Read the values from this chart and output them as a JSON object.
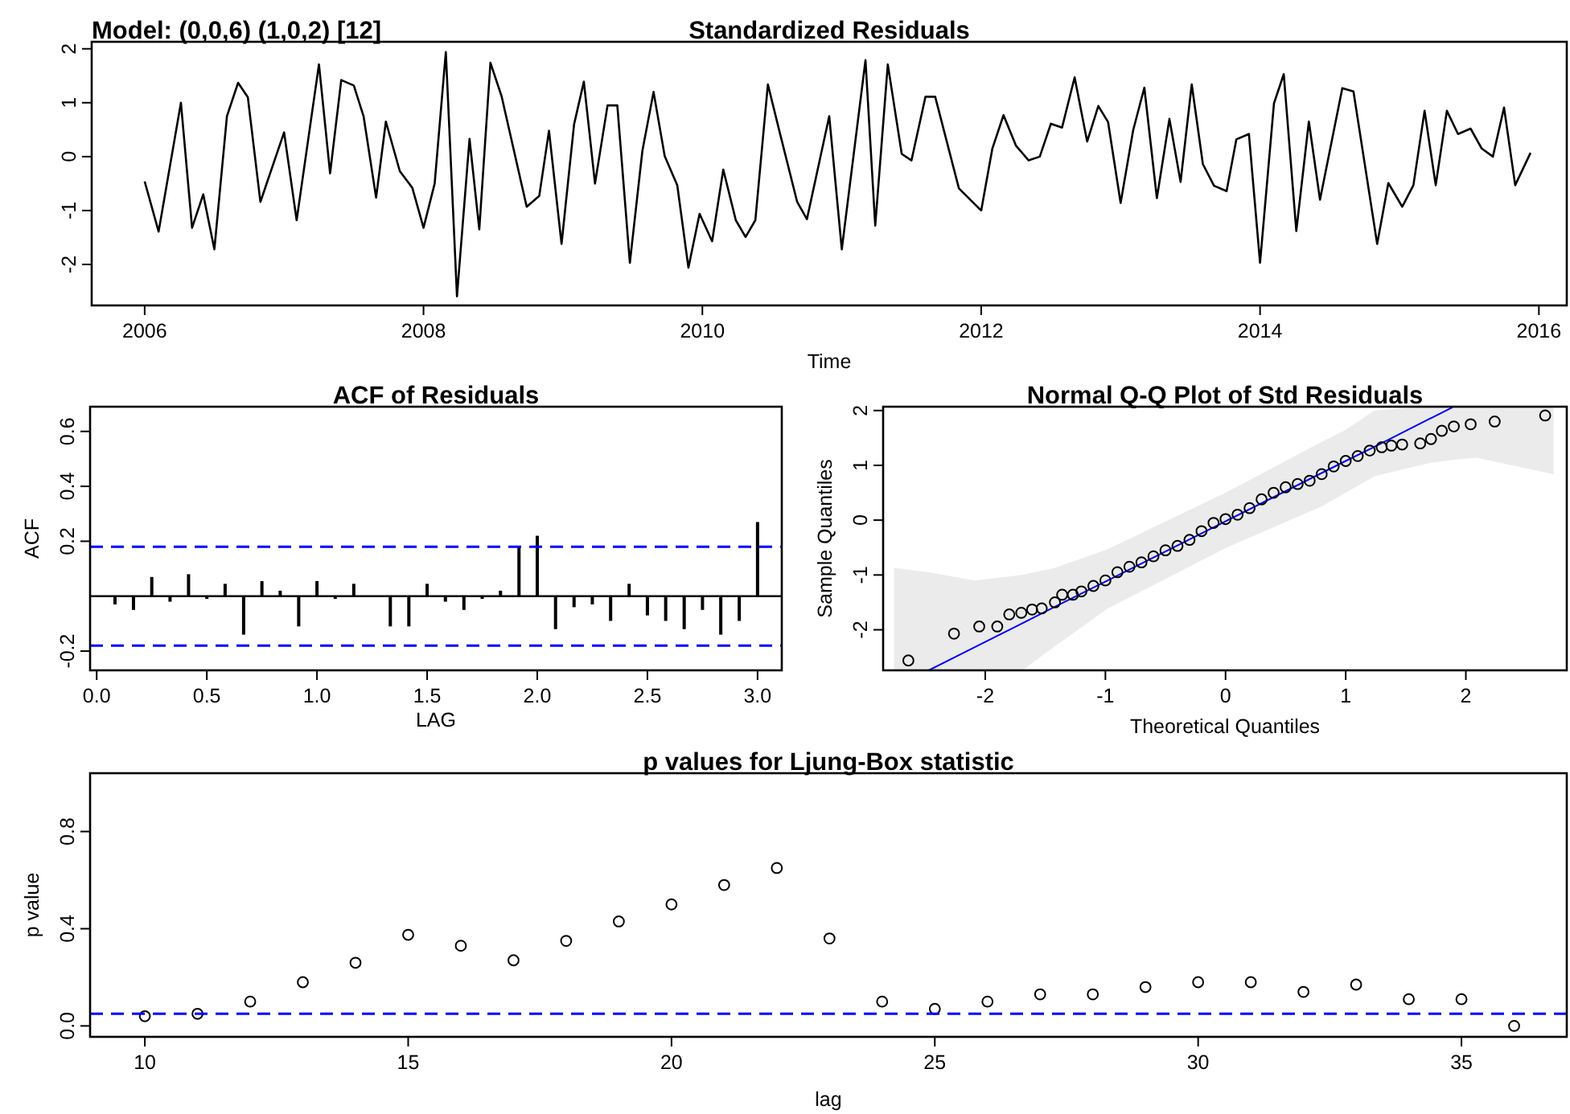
{
  "chart_data": [
    {
      "type": "line",
      "title": "Standardized Residuals",
      "xlabel": "Time",
      "annotations": [
        "Model: (0,0,6) (1,0,2) [12]"
      ],
      "xlim": [
        2005.62,
        2016.2
      ],
      "ylim": [
        -2.76,
        2.13
      ],
      "xticks": [
        2006,
        2008,
        2010,
        2012,
        2014,
        2016
      ],
      "yticks": [
        -2,
        -1,
        0,
        1,
        2
      ],
      "series": [
        {
          "color": "#000000",
          "x": [
            2006.0,
            2006.1,
            2006.26,
            2006.34,
            2006.42,
            2006.5,
            2006.59,
            2006.67,
            2006.74,
            2006.83,
            2007.0,
            2007.09,
            2007.25,
            2007.33,
            2007.41,
            2007.5,
            2007.57,
            2007.66,
            2007.73,
            2007.83,
            2007.92,
            2008.0,
            2008.08,
            2008.16,
            2008.24,
            2008.33,
            2008.4,
            2008.48,
            2008.56,
            2008.74,
            2008.83,
            2008.9,
            2008.99,
            2009.08,
            2009.15,
            2009.23,
            2009.32,
            2009.39,
            2009.48,
            2009.57,
            2009.65,
            2009.73,
            2009.82,
            2009.9,
            2009.98,
            2010.07,
            2010.15,
            2010.24,
            2010.31,
            2010.38,
            2010.47,
            2010.55,
            2010.68,
            2010.75,
            2010.91,
            2011.0,
            2011.17,
            2011.24,
            2011.33,
            2011.43,
            2011.5,
            2011.6,
            2011.67,
            2011.84,
            2012.0,
            2012.08,
            2012.16,
            2012.25,
            2012.34,
            2012.42,
            2012.5,
            2012.58,
            2012.67,
            2012.76,
            2012.84,
            2012.91,
            2013.0,
            2013.09,
            2013.17,
            2013.26,
            2013.35,
            2013.43,
            2013.51,
            2013.59,
            2013.67,
            2013.76,
            2013.83,
            2013.92,
            2014.0,
            2014.1,
            2014.17,
            2014.26,
            2014.35,
            2014.43,
            2014.59,
            2014.67,
            2014.84,
            2014.92,
            2015.02,
            2015.1,
            2015.18,
            2015.26,
            2015.34,
            2015.42,
            2015.51,
            2015.59,
            2015.67,
            2015.75,
            2015.83,
            2015.94
          ],
          "values": [
            -0.46,
            -1.39,
            1.0,
            -1.32,
            -0.7,
            -1.72,
            0.75,
            1.37,
            1.1,
            -0.84,
            0.45,
            -1.18,
            1.71,
            -0.31,
            1.42,
            1.32,
            0.75,
            -0.76,
            0.65,
            -0.27,
            -0.58,
            -1.32,
            -0.5,
            1.94,
            -2.59,
            0.33,
            -1.35,
            1.74,
            1.12,
            -0.93,
            -0.73,
            0.48,
            -1.62,
            0.6,
            1.39,
            -0.5,
            0.95,
            0.95,
            -1.97,
            0.11,
            1.2,
            0.01,
            -0.53,
            -2.06,
            -1.06,
            -1.57,
            -0.24,
            -1.18,
            -1.49,
            -1.18,
            1.34,
            0.5,
            -0.84,
            -1.16,
            0.75,
            -1.72,
            1.79,
            -1.28,
            1.71,
            0.05,
            -0.07,
            1.11,
            1.11,
            -0.59,
            -1.0,
            0.15,
            0.77,
            0.2,
            -0.07,
            0.0,
            0.61,
            0.54,
            1.47,
            0.28,
            0.94,
            0.64,
            -0.86,
            0.49,
            1.28,
            -0.77,
            0.7,
            -0.47,
            1.34,
            -0.14,
            -0.54,
            -0.64,
            0.32,
            0.42,
            -1.97,
            0.99,
            1.53,
            -1.38,
            0.65,
            -0.8,
            1.27,
            1.21,
            -1.62,
            -0.49,
            -0.93,
            -0.53,
            0.85,
            -0.53,
            0.85,
            0.42,
            0.52,
            0.15,
            0.0,
            0.91,
            -0.53,
            0.07
          ]
        }
      ]
    },
    {
      "type": "bar",
      "title": "ACF of Residuals",
      "xlabel": "LAG",
      "ylabel": "ACF",
      "xlim": [
        -0.03,
        3.11
      ],
      "ylim": [
        -0.27,
        0.69
      ],
      "xticks": [
        {
          "value": 0,
          "label": "0.0"
        },
        {
          "value": 0.5,
          "label": "0.5"
        },
        {
          "value": 1,
          "label": "1.0"
        },
        {
          "value": 1.5,
          "label": "1.5"
        },
        {
          "value": 2,
          "label": "2.0"
        },
        {
          "value": 2.5,
          "label": "2.5"
        },
        {
          "value": 3,
          "label": "3.0"
        }
      ],
      "yticks": [
        -0.2,
        0.2,
        0.4,
        0.6
      ],
      "ref_lines": [
        {
          "axis": "y",
          "value": 0.18,
          "color": "#0000ff",
          "line_style": "dashed"
        },
        {
          "axis": "y",
          "value": -0.18,
          "color": "#0000ff",
          "line_style": "dashed"
        }
      ],
      "series": [
        {
          "color": "#000000",
          "x": [
            0.083,
            0.167,
            0.25,
            0.333,
            0.417,
            0.5,
            0.583,
            0.667,
            0.75,
            0.833,
            0.917,
            1.0,
            1.083,
            1.167,
            1.25,
            1.333,
            1.417,
            1.5,
            1.583,
            1.667,
            1.75,
            1.833,
            1.917,
            2.0,
            2.083,
            2.167,
            2.25,
            2.333,
            2.417,
            2.5,
            2.583,
            2.667,
            2.75,
            2.833,
            2.917,
            3.0
          ],
          "values": [
            -0.03,
            -0.05,
            0.07,
            -0.02,
            0.08,
            -0.01,
            0.045,
            -0.14,
            0.055,
            0.02,
            -0.11,
            0.055,
            -0.01,
            0.045,
            0.0,
            -0.11,
            -0.11,
            0.045,
            -0.02,
            -0.05,
            -0.01,
            0.02,
            0.18,
            0.22,
            -0.12,
            -0.04,
            -0.03,
            -0.09,
            0.045,
            -0.07,
            -0.09,
            -0.12,
            -0.05,
            -0.14,
            -0.09,
            0.27
          ]
        }
      ]
    },
    {
      "type": "scatter",
      "title": "Normal Q-Q Plot of Std Residuals",
      "xlabel": "Theoretical Quantiles",
      "ylabel": "Sample Quantiles",
      "marker": "circle",
      "xlim": [
        -2.85,
        2.84
      ],
      "ylim": [
        -2.74,
        2.07
      ],
      "xticks": [
        -2,
        -1,
        0,
        1,
        2
      ],
      "yticks": [
        -2,
        -1,
        0,
        1,
        2
      ],
      "series": [
        {
          "type": "line",
          "marker": "none",
          "color": "#0000ff",
          "x": [
            -2.76,
            -2.47,
            -2.09,
            -1.69,
            -1.42,
            -0.98,
            0,
            0.8,
            1.0,
            1.24,
            1.69,
            1.89,
            2.09,
            2.73
          ],
          "values": [
            null,
            -2.74,
            -2.32,
            -1.88,
            -1.58,
            -1.1,
            -0.02,
            0.86,
            1.08,
            1.34,
            1.84,
            2.06,
            null,
            null
          ],
          "lower": [
            -2.74,
            -2.74,
            -2.74,
            -2.74,
            -2.3,
            -1.61,
            -0.51,
            0.25,
            0.5,
            0.8,
            1.04,
            1.1,
            1.14,
            0.84
          ],
          "upper": [
            -0.87,
            -0.95,
            -1.1,
            -1.0,
            -0.87,
            -0.53,
            0.5,
            1.43,
            1.65,
            2.0,
            2.07,
            2.07,
            2.07,
            2.07
          ]
        },
        {
          "color": "#000000",
          "x": [
            -2.64,
            -2.26,
            -2.05,
            -1.9,
            -1.8,
            -1.7,
            -1.61,
            -1.53,
            -1.42,
            -1.36,
            -1.27,
            -1.2,
            -1.1,
            -1.0,
            -0.9,
            -0.8,
            -0.7,
            -0.6,
            -0.5,
            -0.4,
            -0.3,
            -0.2,
            -0.1,
            0,
            0.1,
            0.2,
            0.3,
            0.4,
            0.5,
            0.6,
            0.7,
            0.8,
            0.9,
            1.0,
            1.1,
            1.2,
            1.3,
            1.38,
            1.47,
            1.62,
            1.71,
            1.8,
            1.9,
            2.04,
            2.24,
            2.66
          ],
          "values": [
            -2.56,
            -2.07,
            -1.94,
            -1.94,
            -1.72,
            -1.69,
            -1.63,
            -1.61,
            -1.5,
            -1.36,
            -1.36,
            -1.3,
            -1.2,
            -1.1,
            -0.95,
            -0.85,
            -0.77,
            -0.66,
            -0.55,
            -0.47,
            -0.36,
            -0.2,
            -0.05,
            0.02,
            0.1,
            0.22,
            0.38,
            0.5,
            0.6,
            0.66,
            0.72,
            0.84,
            0.98,
            1.08,
            1.17,
            1.27,
            1.33,
            1.36,
            1.38,
            1.4,
            1.48,
            1.63,
            1.71,
            1.75,
            1.8,
            1.91
          ]
        }
      ]
    },
    {
      "type": "scatter",
      "title": "p values for Ljung-Box statistic",
      "xlabel": "lag",
      "ylabel": "p value",
      "marker": "circle",
      "xlim": [
        8.96,
        37.0
      ],
      "ylim": [
        -0.045,
        1.04
      ],
      "xticks": [
        10,
        15,
        20,
        25,
        30,
        35
      ],
      "yticks": [
        {
          "value": 0,
          "label": "0.0"
        },
        0.4,
        0.8
      ],
      "ref_lines": [
        {
          "axis": "y",
          "value": 0.05,
          "color": "#0000ff",
          "line_style": "dashed"
        }
      ],
      "series": [
        {
          "color": "#000000",
          "x": [
            10,
            11,
            12,
            13,
            14,
            15,
            16,
            17,
            18,
            19,
            20,
            21,
            22,
            23,
            24,
            25,
            26,
            27,
            28,
            29,
            30,
            31,
            32,
            33,
            34,
            35,
            36
          ],
          "values": [
            0.04,
            0.05,
            0.1,
            0.18,
            0.26,
            0.375,
            0.33,
            0.27,
            0.35,
            0.43,
            0.5,
            0.58,
            0.65,
            0.36,
            0.1,
            0.07,
            0.1,
            0.13,
            0.13,
            0.16,
            0.18,
            0.18,
            0.14,
            0.17,
            0.11,
            0.11,
            0.0
          ]
        }
      ]
    }
  ]
}
